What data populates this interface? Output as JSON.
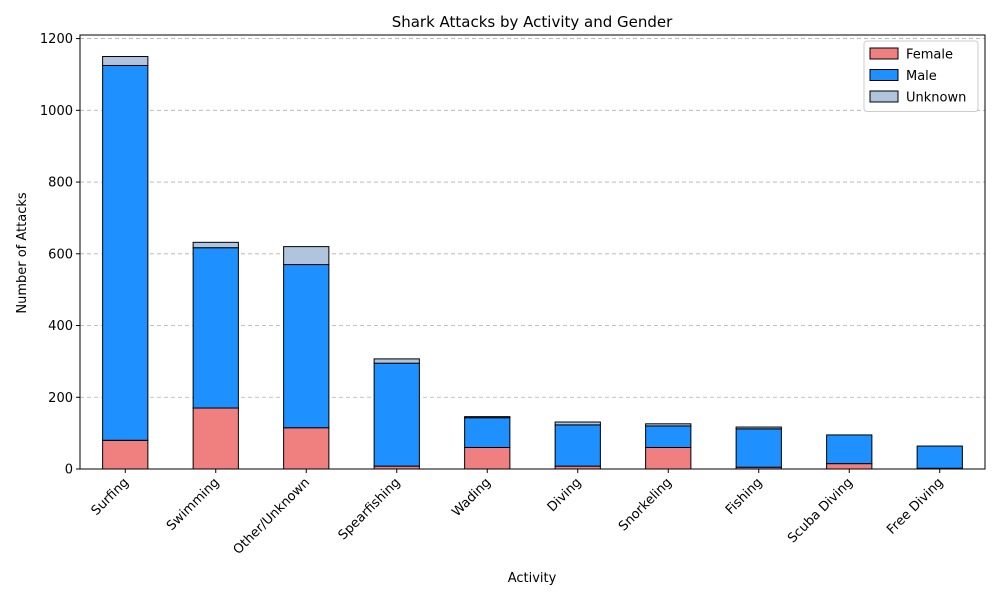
{
  "chart_data": {
    "type": "bar",
    "stacked": true,
    "title": "Shark Attacks by Activity and Gender",
    "xlabel": "Activity",
    "ylabel": "Number of Attacks",
    "ylim": [
      0,
      1210
    ],
    "yticks": [
      0,
      200,
      400,
      600,
      800,
      1000,
      1200
    ],
    "grid": "y-dashed",
    "legend_position": "top-right",
    "categories": [
      "Surfing",
      "Swimming",
      "Other/Unknown",
      "Spearfishing",
      "Wading",
      "Diving",
      "Snorkeling",
      "Fishing",
      "Scuba Diving",
      "Free Diving"
    ],
    "series": [
      {
        "name": "Female",
        "color": "#f08080",
        "values": [
          80,
          170,
          115,
          8,
          60,
          8,
          60,
          5,
          15,
          2
        ]
      },
      {
        "name": "Male",
        "color": "#1e90ff",
        "values": [
          1045,
          447,
          455,
          287,
          83,
          115,
          60,
          107,
          80,
          62
        ]
      },
      {
        "name": "Unknown",
        "color": "#b0c4de",
        "values": [
          25,
          15,
          50,
          12,
          3,
          8,
          6,
          5,
          0,
          0
        ]
      }
    ]
  }
}
